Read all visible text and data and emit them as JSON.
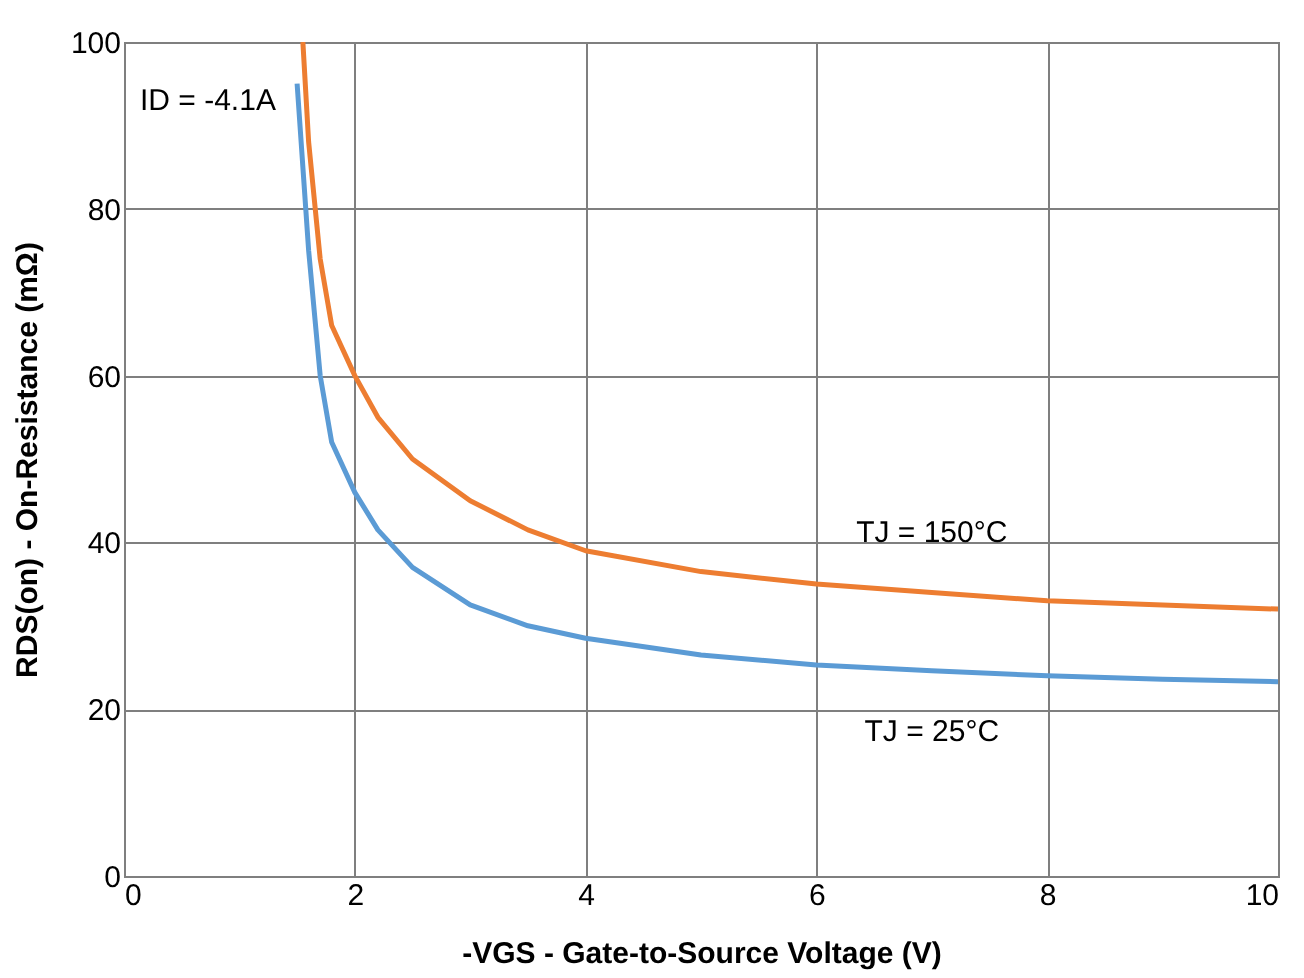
{
  "chart_data": {
    "type": "line",
    "xlabel": "-VGS - Gate-to-Source Voltage (V)",
    "ylabel": "RDS(on) - On-Resistance (mΩ)",
    "xlim": [
      0,
      10
    ],
    "ylim": [
      0,
      100
    ],
    "xticks": [
      0,
      2,
      4,
      6,
      8,
      10
    ],
    "yticks": [
      0,
      20,
      40,
      60,
      80,
      100
    ],
    "grid": true,
    "marker": "none",
    "line_style": "solid",
    "annotations": [
      "ID = -4.1A"
    ],
    "series": [
      {
        "name": "TJ = 150°C",
        "color": "#ed7d31",
        "x": [
          1.55,
          1.6,
          1.7,
          1.8,
          2,
          2.2,
          2.5,
          3,
          3.5,
          4,
          5,
          6,
          7,
          8,
          9,
          10
        ],
        "values": [
          100,
          88,
          74,
          66,
          60,
          55,
          50,
          45,
          41.5,
          39,
          36.5,
          35,
          34,
          33,
          32.5,
          32
        ]
      },
      {
        "name": "TJ = 25°C",
        "color": "#5b9bd5",
        "x": [
          1.5,
          1.55,
          1.6,
          1.7,
          1.8,
          2,
          2.2,
          2.5,
          3,
          3.5,
          4,
          5,
          6,
          7,
          8,
          9,
          10
        ],
        "values": [
          95,
          85,
          75,
          60,
          52,
          46,
          41.5,
          37,
          32.5,
          30,
          28.5,
          26.5,
          25.3,
          24.6,
          24,
          23.6,
          23.3
        ]
      }
    ]
  }
}
